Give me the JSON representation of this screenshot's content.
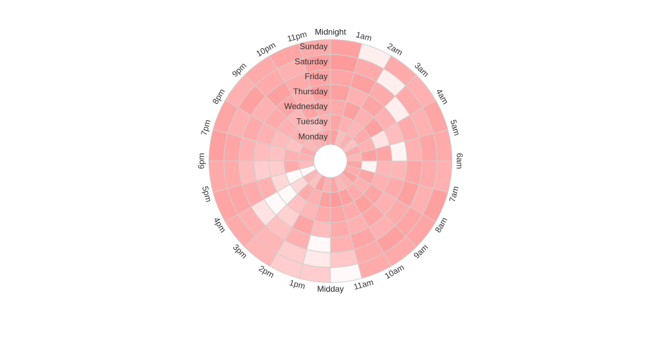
{
  "chart_data": {
    "type": "heatmap",
    "layout": "radial",
    "colors": {
      "low": "#ffffff",
      "high": "#ff8f8f",
      "cell_border": "#cfcfcf",
      "label": "#333333"
    },
    "days": [
      "Monday",
      "Tuesday",
      "Wednesday",
      "Thursday",
      "Friday",
      "Saturday",
      "Sunday"
    ],
    "hours": [
      "Midnight",
      "1am",
      "2am",
      "3am",
      "4am",
      "5am",
      "6am",
      "7am",
      "8am",
      "9am",
      "10am",
      "11am",
      "Midday",
      "1pm",
      "2pm",
      "3pm",
      "4pm",
      "5pm",
      "6pm",
      "7pm",
      "8pm",
      "9pm",
      "10pm",
      "11pm"
    ],
    "values": [
      [
        0.85,
        0.6,
        0.7,
        0.55,
        0.75,
        0.65,
        0.8,
        0.75,
        0.85,
        0.7,
        0.65,
        0.8,
        0.7,
        0.85,
        0.55,
        0.65,
        0.05,
        0.6,
        0.7,
        0.75,
        0.65,
        0.7,
        0.75,
        0.8
      ],
      [
        0.8,
        0.7,
        0.65,
        0.75,
        0.7,
        0.85,
        0.1,
        0.8,
        0.7,
        0.75,
        0.85,
        0.9,
        0.85,
        0.7,
        0.75,
        0.35,
        0.05,
        0.75,
        0.7,
        0.55,
        0.7,
        0.6,
        0.55,
        0.7
      ],
      [
        0.75,
        0.85,
        0.7,
        0.85,
        0.25,
        0.8,
        0.65,
        0.7,
        0.8,
        0.85,
        0.75,
        0.8,
        0.75,
        0.65,
        0.55,
        0.05,
        0.35,
        0.45,
        0.55,
        0.6,
        0.7,
        0.65,
        0.8,
        0.75
      ],
      [
        0.85,
        0.7,
        0.8,
        0.7,
        0.6,
        0.1,
        0.65,
        0.75,
        0.7,
        0.8,
        0.7,
        0.75,
        0.6,
        0.8,
        0.4,
        0.05,
        0.7,
        0.45,
        0.6,
        0.7,
        0.75,
        0.8,
        0.7,
        0.85
      ],
      [
        0.8,
        0.85,
        0.75,
        0.15,
        0.75,
        0.7,
        0.8,
        0.85,
        0.75,
        0.7,
        0.8,
        0.7,
        0.05,
        0.7,
        0.55,
        0.25,
        0.75,
        0.6,
        0.7,
        0.75,
        0.7,
        0.85,
        0.75,
        0.8
      ],
      [
        0.9,
        0.75,
        0.15,
        0.75,
        0.7,
        0.8,
        0.75,
        0.7,
        0.8,
        0.85,
        0.75,
        0.5,
        0.2,
        0.45,
        0.65,
        0.7,
        0.8,
        0.75,
        0.8,
        0.7,
        0.85,
        0.75,
        0.7,
        0.85
      ],
      [
        0.85,
        0.15,
        0.75,
        0.7,
        0.8,
        0.75,
        0.7,
        0.85,
        0.8,
        0.75,
        0.75,
        0.05,
        0.45,
        0.45,
        0.65,
        0.75,
        0.8,
        0.75,
        0.85,
        0.8,
        0.7,
        0.75,
        0.8,
        0.75
      ]
    ]
  }
}
